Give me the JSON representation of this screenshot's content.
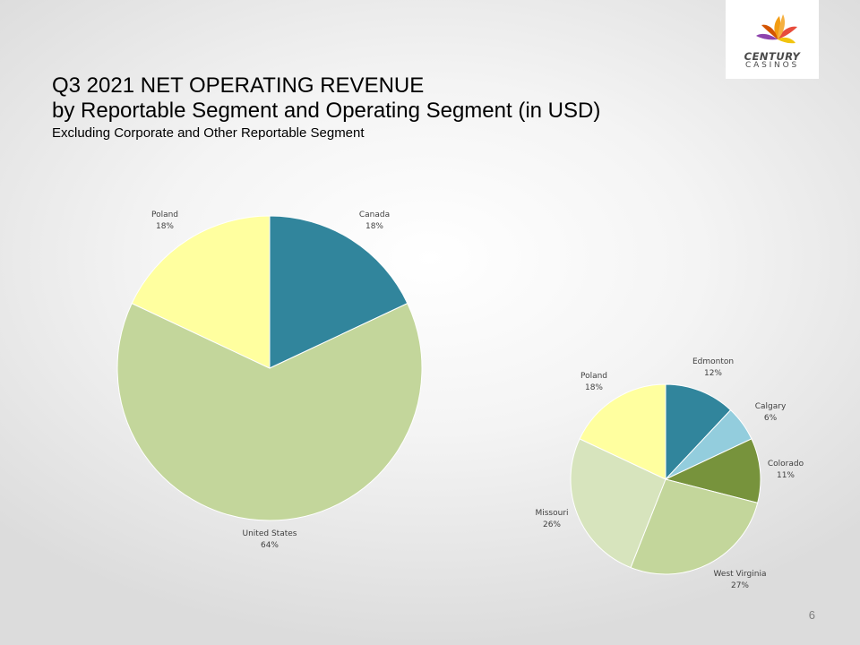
{
  "title": {
    "line1": "Q3 2021 NET OPERATING REVENUE",
    "line2": "by Reportable Segment and Operating Segment (in USD)",
    "line3": "Excluding Corporate and Other Reportable Segment"
  },
  "logo": {
    "word1": "CENTURY",
    "word2": "CASINOS"
  },
  "page_number": "6",
  "chart_data": [
    {
      "type": "pie",
      "categories": [
        "Canada",
        "United States",
        "Poland"
      ],
      "values": [
        18,
        64,
        18
      ],
      "labels": [
        "18%",
        "64%",
        "18%"
      ],
      "colors": [
        "#31859c",
        "#c3d69b",
        "#ffff9f"
      ]
    },
    {
      "type": "pie",
      "categories": [
        "Edmonton",
        "Calgary",
        "Colorado",
        "West Virginia",
        "Missouri",
        "Poland"
      ],
      "values": [
        12,
        6,
        11,
        27,
        26,
        18
      ],
      "labels": [
        "12%",
        "6%",
        "11%",
        "27%",
        "26%",
        "18%"
      ],
      "colors": [
        "#31859c",
        "#93cddd",
        "#77933c",
        "#c3d69b",
        "#d7e4bd",
        "#ffff9f"
      ]
    }
  ]
}
